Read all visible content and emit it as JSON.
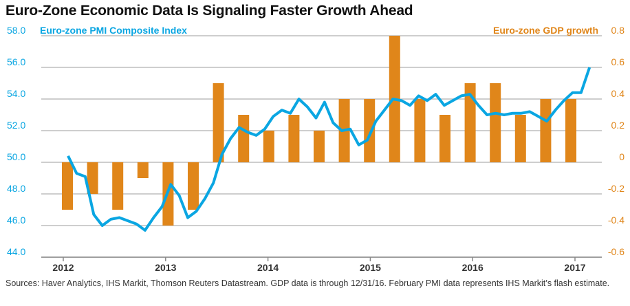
{
  "chart_data": {
    "type": "bar+line",
    "title": "Euro-Zone Economic Data Is Signaling Faster Growth Ahead",
    "left_axis": {
      "label": "Euro-zone PMI Composite Index",
      "range": [
        44,
        58
      ],
      "ticks": [
        "58.0",
        "56.0",
        "54.0",
        "52.0",
        "50.0",
        "48.0",
        "46.0",
        "44.0"
      ],
      "tick_values": [
        58,
        56,
        54,
        52,
        50,
        48,
        46,
        44
      ]
    },
    "right_axis": {
      "label": "Euro-zone GDP growth",
      "range": [
        -0.6,
        0.8
      ],
      "ticks": [
        "0.8",
        "0.6",
        "0.4",
        "0.2",
        "0",
        "-0.2",
        "-0.4",
        "-0.6"
      ],
      "tick_values": [
        0.8,
        0.6,
        0.4,
        0.2,
        0,
        -0.2,
        -0.4,
        -0.6
      ]
    },
    "x_ticks": [
      "2012",
      "2013",
      "2014",
      "2015",
      "2016",
      "2017"
    ],
    "grid": true,
    "series": [
      {
        "name": "Euro-zone GDP growth",
        "type": "bar",
        "axis": "right",
        "color": "#e0861a",
        "frequency": "quarterly",
        "values": [
          -0.3,
          -0.2,
          -0.3,
          -0.1,
          -0.4,
          -0.3,
          0.5,
          0.3,
          0.2,
          0.3,
          0.2,
          0.4,
          0.4,
          0.8,
          0.4,
          0.3,
          0.5,
          0.5,
          0.3,
          0.4,
          0.4
        ]
      },
      {
        "name": "Euro-zone PMI Composite Index",
        "type": "line",
        "axis": "left",
        "color": "#0aa6e2",
        "frequency": "monthly",
        "start": "2012-01",
        "values": [
          50.4,
          49.3,
          49.1,
          46.7,
          46.0,
          46.4,
          46.5,
          46.3,
          46.1,
          45.7,
          46.5,
          47.2,
          48.6,
          47.9,
          46.5,
          46.9,
          47.7,
          48.7,
          50.5,
          51.5,
          52.2,
          51.9,
          51.7,
          52.1,
          52.9,
          53.3,
          53.1,
          54.0,
          53.5,
          52.8,
          53.8,
          52.5,
          52.0,
          52.1,
          51.1,
          51.4,
          52.6,
          53.3,
          54.0,
          53.9,
          53.6,
          54.2,
          53.9,
          54.3,
          53.6,
          53.9,
          54.2,
          54.3,
          53.6,
          53.0,
          53.1,
          53.0,
          53.1,
          53.1,
          53.2,
          52.9,
          52.6,
          53.3,
          53.9,
          54.4,
          54.4,
          56.0
        ]
      }
    ]
  },
  "source_note": "Sources: Haver Analytics, IHS Markit, Thomson Reuters Datastream. GDP data is through 12/31/16. February PMI data represents IHS Markit’s flash estimate."
}
